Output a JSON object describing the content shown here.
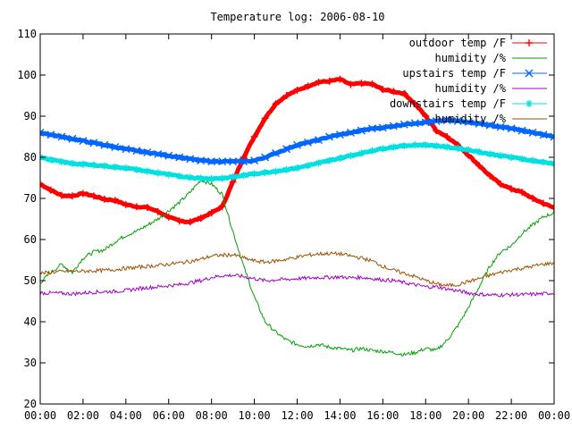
{
  "chart_data": {
    "type": "line",
    "title": "Temperature log: 2006-08-10",
    "xlabel": "",
    "ylabel": "",
    "ylim": [
      20,
      110
    ],
    "xlim": [
      "00:00",
      "24:00"
    ],
    "grid": false,
    "legend_position": "top-right",
    "x_ticks": [
      "00:00",
      "02:00",
      "04:00",
      "06:00",
      "08:00",
      "10:00",
      "12:00",
      "14:00",
      "16:00",
      "18:00",
      "20:00",
      "22:00",
      "00:00"
    ],
    "y_ticks": [
      20,
      30,
      40,
      50,
      60,
      70,
      80,
      90,
      100,
      110
    ],
    "x_hours": [
      0,
      0.5,
      1,
      1.5,
      2,
      2.5,
      3,
      3.5,
      4,
      4.5,
      5,
      5.5,
      6,
      6.5,
      7,
      7.5,
      8,
      8.5,
      9,
      9.5,
      10,
      10.5,
      11,
      11.5,
      12,
      12.5,
      13,
      13.5,
      14,
      14.5,
      15,
      15.5,
      16,
      16.5,
      17,
      17.5,
      18,
      18.5,
      19,
      19.5,
      20,
      20.5,
      21,
      21.5,
      22,
      22.5,
      23,
      23.5,
      24
    ],
    "series": [
      {
        "name": "outdoor temp /F",
        "color": "#ff0000",
        "marker": "plus",
        "values": [
          73.5,
          72.0,
          70.7,
          70.6,
          71.2,
          70.6,
          69.8,
          69.5,
          68.5,
          68.0,
          67.8,
          66.8,
          65.5,
          64.5,
          64.3,
          65.2,
          66.5,
          68.0,
          74.0,
          80.0,
          85.0,
          89.5,
          93.0,
          95.0,
          96.3,
          97.3,
          98.3,
          98.5,
          99.0,
          97.7,
          98.0,
          97.8,
          96.5,
          96.0,
          95.5,
          93.0,
          90.0,
          86.5,
          85.0,
          83.0,
          80.5,
          78.0,
          75.5,
          73.5,
          72.3,
          71.5,
          70.0,
          68.8,
          67.7
        ]
      },
      {
        "name": "humidity /%",
        "color": "#00a000",
        "marker": "none",
        "values": [
          49.5,
          52.0,
          54.0,
          52.0,
          55.5,
          57.0,
          57.5,
          59.5,
          61.0,
          62.0,
          63.5,
          65.0,
          67.0,
          69.0,
          71.5,
          74.5,
          73.5,
          71.0,
          62.0,
          53.5,
          46.0,
          40.0,
          37.5,
          35.5,
          34.5,
          34.0,
          34.5,
          33.8,
          33.5,
          33.0,
          33.5,
          33.0,
          32.8,
          32.5,
          32.0,
          32.5,
          33.5,
          33.0,
          35.5,
          39.0,
          43.5,
          48.5,
          53.5,
          57.0,
          58.5,
          61.5,
          63.5,
          65.5,
          66.5
        ]
      },
      {
        "name": "upstairs temp /F",
        "color": "#0066ff",
        "marker": "x",
        "values": [
          86.0,
          85.5,
          85.0,
          84.5,
          84.0,
          83.5,
          83.0,
          82.5,
          82.0,
          81.6,
          81.2,
          80.8,
          80.4,
          80.0,
          79.6,
          79.2,
          79.0,
          79.0,
          79.0,
          79.0,
          79.2,
          80.0,
          81.0,
          82.0,
          83.0,
          83.6,
          84.2,
          85.0,
          85.5,
          86.0,
          86.5,
          87.0,
          87.2,
          87.6,
          88.0,
          88.3,
          88.5,
          88.8,
          89.0,
          88.8,
          88.6,
          88.2,
          87.8,
          87.4,
          87.0,
          86.5,
          86.0,
          85.5,
          85.0
        ]
      },
      {
        "name": "humidity /%",
        "color": "#a000c0",
        "marker": "none",
        "values": [
          47.0,
          47.0,
          46.9,
          46.8,
          47.0,
          47.2,
          47.3,
          47.4,
          47.6,
          48.0,
          48.3,
          48.5,
          48.8,
          49.0,
          49.5,
          50.0,
          50.8,
          51.2,
          51.3,
          51.0,
          50.5,
          50.0,
          50.2,
          50.3,
          50.5,
          50.6,
          50.8,
          50.8,
          50.9,
          50.7,
          50.8,
          50.5,
          50.2,
          50.0,
          49.5,
          49.0,
          48.5,
          48.5,
          48.0,
          47.5,
          47.0,
          46.7,
          46.5,
          46.5,
          46.6,
          46.6,
          46.7,
          46.8,
          47.0
        ]
      },
      {
        "name": "downstairs temp /F",
        "color": "#00e0e0",
        "marker": "star",
        "values": [
          80.0,
          79.4,
          78.9,
          78.5,
          78.3,
          78.1,
          77.9,
          77.6,
          77.4,
          77.0,
          76.6,
          76.2,
          75.8,
          75.4,
          75.1,
          74.9,
          74.8,
          74.9,
          75.2,
          75.6,
          76.0,
          76.3,
          76.6,
          77.0,
          77.4,
          78.0,
          78.6,
          79.2,
          79.8,
          80.4,
          81.0,
          81.6,
          82.1,
          82.5,
          82.8,
          83.0,
          83.0,
          82.8,
          82.5,
          82.2,
          81.8,
          81.3,
          80.8,
          80.4,
          80.0,
          79.6,
          79.2,
          78.8,
          78.5
        ]
      },
      {
        "name": "humidity /%",
        "color": "#a05000",
        "marker": "none",
        "values": [
          51.8,
          52.0,
          52.2,
          52.3,
          52.3,
          52.4,
          52.5,
          52.7,
          53.0,
          53.2,
          53.5,
          53.7,
          54.0,
          54.3,
          54.7,
          55.2,
          56.0,
          56.2,
          56.3,
          55.5,
          54.8,
          54.5,
          54.8,
          55.2,
          55.7,
          56.2,
          56.5,
          56.6,
          56.5,
          56.0,
          55.5,
          54.8,
          53.5,
          52.5,
          51.8,
          51.0,
          50.0,
          49.2,
          48.8,
          49.0,
          49.8,
          50.5,
          51.3,
          52.0,
          52.6,
          53.0,
          53.5,
          54.0,
          54.3
        ]
      }
    ]
  }
}
